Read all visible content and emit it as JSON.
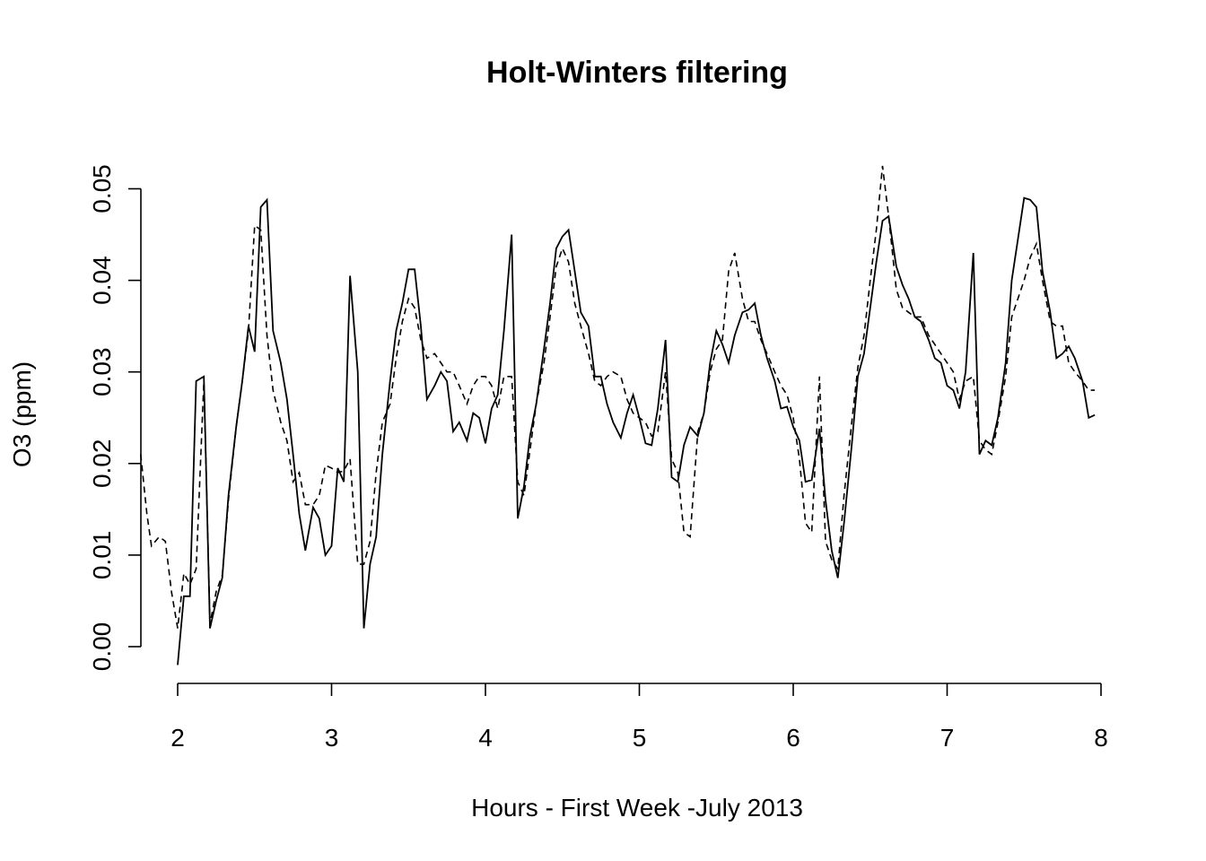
{
  "chart_data": {
    "type": "line",
    "title": "Holt-Winters filtering",
    "xlabel": "Hours - First Week -July 2013",
    "ylabel": "O3 (ppm)",
    "xlim": [
      1.76,
      8.0
    ],
    "ylim": [
      -0.004,
      0.053
    ],
    "x_ticks": [
      "2",
      "3",
      "4",
      "5",
      "6",
      "7",
      "8"
    ],
    "y_ticks": [
      "0.00",
      "0.01",
      "0.02",
      "0.03",
      "0.04",
      "0.05"
    ],
    "x_tick_values": [
      2,
      3,
      4,
      5,
      6,
      7,
      8
    ],
    "y_tick_values": [
      0.0,
      0.01,
      0.02,
      0.03,
      0.04,
      0.05
    ],
    "grid": false,
    "series": [
      {
        "style": "solid",
        "color": "#000000",
        "points": [
          [
            2.0,
            -0.002
          ],
          [
            2.04,
            0.0055
          ],
          [
            2.08,
            0.0055
          ],
          [
            2.12,
            0.029
          ],
          [
            2.17,
            0.0295
          ],
          [
            2.21,
            0.002
          ],
          [
            2.25,
            0.005
          ],
          [
            2.29,
            0.0075
          ],
          [
            2.33,
            0.0165
          ],
          [
            2.38,
            0.024
          ],
          [
            2.42,
            0.029
          ],
          [
            2.46,
            0.035
          ],
          [
            2.5,
            0.0322
          ],
          [
            2.54,
            0.048
          ],
          [
            2.58,
            0.0488
          ],
          [
            2.62,
            0.0345
          ],
          [
            2.67,
            0.031
          ],
          [
            2.71,
            0.027
          ],
          [
            2.75,
            0.021
          ],
          [
            2.79,
            0.0145
          ],
          [
            2.83,
            0.0105
          ],
          [
            2.88,
            0.0152
          ],
          [
            2.92,
            0.014
          ],
          [
            2.96,
            0.01
          ],
          [
            3.0,
            0.011
          ],
          [
            3.04,
            0.0195
          ],
          [
            3.08,
            0.018
          ],
          [
            3.12,
            0.0405
          ],
          [
            3.17,
            0.03
          ],
          [
            3.21,
            0.002
          ],
          [
            3.25,
            0.009
          ],
          [
            3.29,
            0.012
          ],
          [
            3.33,
            0.021
          ],
          [
            3.38,
            0.029
          ],
          [
            3.42,
            0.0345
          ],
          [
            3.46,
            0.0375
          ],
          [
            3.5,
            0.0412
          ],
          [
            3.54,
            0.0412
          ],
          [
            3.58,
            0.035
          ],
          [
            3.62,
            0.027
          ],
          [
            3.67,
            0.0285
          ],
          [
            3.71,
            0.03
          ],
          [
            3.75,
            0.029
          ],
          [
            3.79,
            0.0235
          ],
          [
            3.83,
            0.0245
          ],
          [
            3.88,
            0.0225
          ],
          [
            3.92,
            0.0255
          ],
          [
            3.96,
            0.025
          ],
          [
            4.0,
            0.0222
          ],
          [
            4.04,
            0.026
          ],
          [
            4.08,
            0.0275
          ],
          [
            4.12,
            0.0345
          ],
          [
            4.17,
            0.045
          ],
          [
            4.21,
            0.014
          ],
          [
            4.25,
            0.0175
          ],
          [
            4.29,
            0.023
          ],
          [
            4.33,
            0.0265
          ],
          [
            4.38,
            0.0325
          ],
          [
            4.42,
            0.0375
          ],
          [
            4.46,
            0.0435
          ],
          [
            4.5,
            0.0448
          ],
          [
            4.54,
            0.0455
          ],
          [
            4.58,
            0.041
          ],
          [
            4.62,
            0.0365
          ],
          [
            4.67,
            0.035
          ],
          [
            4.71,
            0.0295
          ],
          [
            4.75,
            0.0295
          ],
          [
            4.79,
            0.0265
          ],
          [
            4.83,
            0.0245
          ],
          [
            4.88,
            0.0228
          ],
          [
            4.92,
            0.0255
          ],
          [
            4.96,
            0.0275
          ],
          [
            5.0,
            0.025
          ],
          [
            5.04,
            0.0222
          ],
          [
            5.08,
            0.022
          ],
          [
            5.12,
            0.026
          ],
          [
            5.17,
            0.0335
          ],
          [
            5.21,
            0.0185
          ],
          [
            5.25,
            0.018
          ],
          [
            5.29,
            0.022
          ],
          [
            5.33,
            0.024
          ],
          [
            5.38,
            0.023
          ],
          [
            5.42,
            0.0255
          ],
          [
            5.46,
            0.031
          ],
          [
            5.5,
            0.0345
          ],
          [
            5.54,
            0.033
          ],
          [
            5.58,
            0.031
          ],
          [
            5.62,
            0.034
          ],
          [
            5.67,
            0.0365
          ],
          [
            5.71,
            0.0368
          ],
          [
            5.75,
            0.0375
          ],
          [
            5.79,
            0.034
          ],
          [
            5.83,
            0.0315
          ],
          [
            5.88,
            0.029
          ],
          [
            5.92,
            0.026
          ],
          [
            5.96,
            0.0262
          ],
          [
            6.0,
            0.024
          ],
          [
            6.04,
            0.0225
          ],
          [
            6.08,
            0.018
          ],
          [
            6.12,
            0.0182
          ],
          [
            6.17,
            0.0238
          ],
          [
            6.21,
            0.016
          ],
          [
            6.25,
            0.0105
          ],
          [
            6.29,
            0.0075
          ],
          [
            6.33,
            0.0135
          ],
          [
            6.38,
            0.022
          ],
          [
            6.42,
            0.0295
          ],
          [
            6.46,
            0.032
          ],
          [
            6.5,
            0.037
          ],
          [
            6.54,
            0.042
          ],
          [
            6.58,
            0.0465
          ],
          [
            6.62,
            0.047
          ],
          [
            6.67,
            0.0415
          ],
          [
            6.71,
            0.0395
          ],
          [
            6.75,
            0.038
          ],
          [
            6.79,
            0.036
          ],
          [
            6.83,
            0.0355
          ],
          [
            6.88,
            0.0335
          ],
          [
            6.92,
            0.0315
          ],
          [
            6.96,
            0.031
          ],
          [
            7.0,
            0.0285
          ],
          [
            7.04,
            0.028
          ],
          [
            7.08,
            0.026
          ],
          [
            7.12,
            0.03
          ],
          [
            7.17,
            0.043
          ],
          [
            7.21,
            0.021
          ],
          [
            7.25,
            0.0225
          ],
          [
            7.29,
            0.022
          ],
          [
            7.33,
            0.025
          ],
          [
            7.38,
            0.031
          ],
          [
            7.42,
            0.04
          ],
          [
            7.46,
            0.0445
          ],
          [
            7.5,
            0.049
          ],
          [
            7.54,
            0.0488
          ],
          [
            7.58,
            0.048
          ],
          [
            7.62,
            0.041
          ],
          [
            7.67,
            0.0365
          ],
          [
            7.71,
            0.0315
          ],
          [
            7.75,
            0.032
          ],
          [
            7.79,
            0.0328
          ],
          [
            7.83,
            0.0315
          ],
          [
            7.88,
            0.029
          ],
          [
            7.92,
            0.025
          ],
          [
            7.96,
            0.0253
          ]
        ]
      },
      {
        "style": "dashed",
        "color": "#000000",
        "points": [
          [
            1.76,
            0.021
          ],
          [
            1.8,
            0.0145
          ],
          [
            1.83,
            0.011
          ],
          [
            1.88,
            0.012
          ],
          [
            1.92,
            0.0115
          ],
          [
            1.96,
            0.006
          ],
          [
            2.0,
            0.002
          ],
          [
            2.04,
            0.008
          ],
          [
            2.08,
            0.0068
          ],
          [
            2.12,
            0.0085
          ],
          [
            2.17,
            0.029
          ],
          [
            2.21,
            0.0025
          ],
          [
            2.25,
            0.006
          ],
          [
            2.29,
            0.0078
          ],
          [
            2.33,
            0.016
          ],
          [
            2.38,
            0.024
          ],
          [
            2.42,
            0.029
          ],
          [
            2.46,
            0.0345
          ],
          [
            2.5,
            0.046
          ],
          [
            2.54,
            0.0455
          ],
          [
            2.58,
            0.034
          ],
          [
            2.62,
            0.028
          ],
          [
            2.67,
            0.0245
          ],
          [
            2.71,
            0.0225
          ],
          [
            2.75,
            0.018
          ],
          [
            2.79,
            0.019
          ],
          [
            2.83,
            0.0155
          ],
          [
            2.88,
            0.0155
          ],
          [
            2.92,
            0.0165
          ],
          [
            2.96,
            0.0198
          ],
          [
            3.0,
            0.0195
          ],
          [
            3.04,
            0.019
          ],
          [
            3.08,
            0.0192
          ],
          [
            3.12,
            0.0205
          ],
          [
            3.17,
            0.009
          ],
          [
            3.21,
            0.009
          ],
          [
            3.25,
            0.0115
          ],
          [
            3.29,
            0.019
          ],
          [
            3.33,
            0.0245
          ],
          [
            3.38,
            0.0265
          ],
          [
            3.42,
            0.0315
          ],
          [
            3.46,
            0.0355
          ],
          [
            3.5,
            0.038
          ],
          [
            3.54,
            0.037
          ],
          [
            3.58,
            0.0335
          ],
          [
            3.62,
            0.0315
          ],
          [
            3.67,
            0.032
          ],
          [
            3.71,
            0.031
          ],
          [
            3.75,
            0.03
          ],
          [
            3.79,
            0.03
          ],
          [
            3.83,
            0.0285
          ],
          [
            3.88,
            0.0265
          ],
          [
            3.92,
            0.0285
          ],
          [
            3.96,
            0.0295
          ],
          [
            4.0,
            0.0295
          ],
          [
            4.04,
            0.0285
          ],
          [
            4.08,
            0.026
          ],
          [
            4.12,
            0.0295
          ],
          [
            4.17,
            0.0295
          ],
          [
            4.21,
            0.018
          ],
          [
            4.25,
            0.0165
          ],
          [
            4.29,
            0.0215
          ],
          [
            4.33,
            0.0265
          ],
          [
            4.38,
            0.031
          ],
          [
            4.42,
            0.036
          ],
          [
            4.46,
            0.0415
          ],
          [
            4.5,
            0.0435
          ],
          [
            4.54,
            0.042
          ],
          [
            4.58,
            0.0375
          ],
          [
            4.62,
            0.035
          ],
          [
            4.67,
            0.032
          ],
          [
            4.71,
            0.029
          ],
          [
            4.75,
            0.0285
          ],
          [
            4.79,
            0.0295
          ],
          [
            4.83,
            0.03
          ],
          [
            4.88,
            0.0295
          ],
          [
            4.92,
            0.027
          ],
          [
            4.96,
            0.0255
          ],
          [
            5.0,
            0.025
          ],
          [
            5.04,
            0.0245
          ],
          [
            5.08,
            0.023
          ],
          [
            5.12,
            0.0235
          ],
          [
            5.17,
            0.03
          ],
          [
            5.21,
            0.0205
          ],
          [
            5.25,
            0.019
          ],
          [
            5.29,
            0.0125
          ],
          [
            5.33,
            0.012
          ],
          [
            5.38,
            0.0235
          ],
          [
            5.42,
            0.0255
          ],
          [
            5.46,
            0.03
          ],
          [
            5.5,
            0.0325
          ],
          [
            5.54,
            0.0335
          ],
          [
            5.58,
            0.041
          ],
          [
            5.62,
            0.043
          ],
          [
            5.67,
            0.038
          ],
          [
            5.71,
            0.0355
          ],
          [
            5.75,
            0.0355
          ],
          [
            5.79,
            0.0335
          ],
          [
            5.83,
            0.032
          ],
          [
            5.88,
            0.03
          ],
          [
            5.92,
            0.0285
          ],
          [
            5.96,
            0.0275
          ],
          [
            6.0,
            0.025
          ],
          [
            6.04,
            0.0205
          ],
          [
            6.08,
            0.0135
          ],
          [
            6.12,
            0.0125
          ],
          [
            6.17,
            0.0295
          ],
          [
            6.21,
            0.0115
          ],
          [
            6.25,
            0.0095
          ],
          [
            6.29,
            0.0085
          ],
          [
            6.33,
            0.0165
          ],
          [
            6.38,
            0.0245
          ],
          [
            6.42,
            0.0305
          ],
          [
            6.46,
            0.034
          ],
          [
            6.5,
            0.04
          ],
          [
            6.54,
            0.0455
          ],
          [
            6.58,
            0.0525
          ],
          [
            6.62,
            0.047
          ],
          [
            6.67,
            0.039
          ],
          [
            6.71,
            0.037
          ],
          [
            6.75,
            0.0365
          ],
          [
            6.79,
            0.036
          ],
          [
            6.83,
            0.036
          ],
          [
            6.88,
            0.034
          ],
          [
            6.92,
            0.033
          ],
          [
            6.96,
            0.032
          ],
          [
            7.0,
            0.031
          ],
          [
            7.04,
            0.03
          ],
          [
            7.08,
            0.027
          ],
          [
            7.12,
            0.029
          ],
          [
            7.17,
            0.0295
          ],
          [
            7.21,
            0.0225
          ],
          [
            7.25,
            0.0215
          ],
          [
            7.29,
            0.021
          ],
          [
            7.33,
            0.0245
          ],
          [
            7.38,
            0.0295
          ],
          [
            7.42,
            0.036
          ],
          [
            7.46,
            0.038
          ],
          [
            7.5,
            0.04
          ],
          [
            7.54,
            0.0425
          ],
          [
            7.58,
            0.044
          ],
          [
            7.62,
            0.04
          ],
          [
            7.67,
            0.0355
          ],
          [
            7.71,
            0.035
          ],
          [
            7.75,
            0.035
          ],
          [
            7.79,
            0.031
          ],
          [
            7.83,
            0.03
          ],
          [
            7.88,
            0.029
          ],
          [
            7.92,
            0.028
          ],
          [
            7.96,
            0.028
          ]
        ]
      }
    ]
  }
}
